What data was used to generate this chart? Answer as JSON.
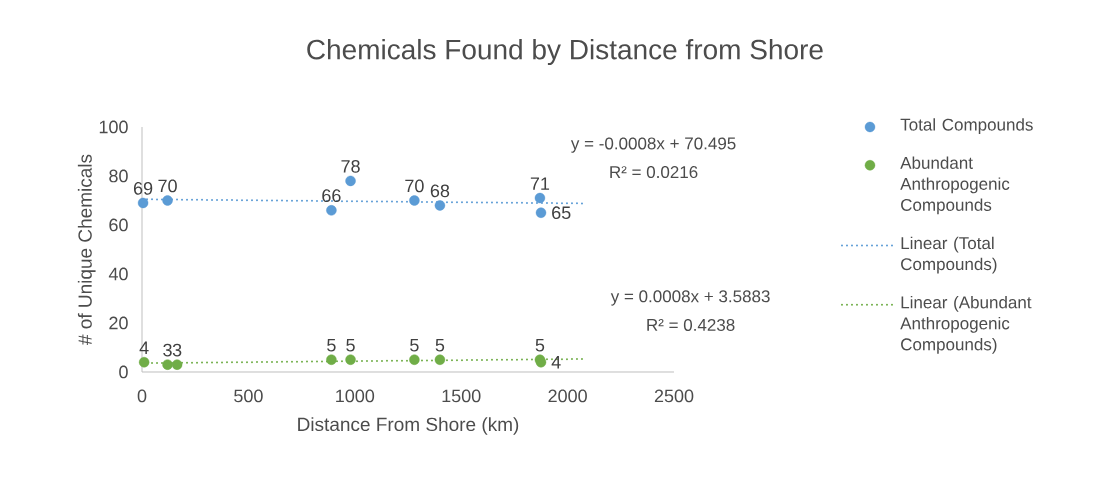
{
  "chart_data": {
    "type": "scatter",
    "title": "Chemicals Found by Distance from Shore",
    "xlabel": "Distance From Shore (km)",
    "ylabel": "# of Unique Chemicals",
    "xlim": [
      0,
      2500
    ],
    "xticks": [
      0,
      500,
      1000,
      1500,
      2000,
      2500
    ],
    "ylim": [
      0,
      100
    ],
    "yticks": [
      0,
      20,
      40,
      60,
      80,
      100
    ],
    "grid": false,
    "legend": "right",
    "marker": "circle",
    "data_labels": true,
    "series": [
      {
        "name": "Total Compounds",
        "color": "#5b9bd5",
        "x": [
          5,
          120,
          890,
          980,
          1280,
          1400,
          1870,
          1875
        ],
        "values": [
          69,
          70,
          66,
          78,
          70,
          68,
          71,
          65
        ]
      },
      {
        "name": "Abundant Anthropogenic Compounds",
        "color": "#70ad47",
        "x": [
          10,
          120,
          165,
          890,
          980,
          1280,
          1400,
          1870,
          1875
        ],
        "values": [
          4,
          3,
          3,
          5,
          5,
          5,
          5,
          5,
          4
        ]
      },
      {
        "name": "Linear (Total Compounds)",
        "type": "line",
        "line_style": "dotted",
        "marker": "none",
        "data_labels": false,
        "color": "#5b9bd5",
        "x": [
          0,
          2080
        ],
        "values": [
          70.5,
          68.8
        ]
      },
      {
        "name": "Linear (Abundant Anthropogenic Compounds)",
        "type": "line",
        "line_style": "dotted",
        "marker": "none",
        "data_labels": false,
        "color": "#70ad47",
        "x": [
          0,
          2080
        ],
        "values": [
          3.6,
          5.3
        ]
      }
    ],
    "annotations": [
      "y = -0.0008x + 70.495",
      "R² = 0.0216",
      "y = 0.0008x + 3.5883",
      "R² = 0.4238"
    ]
  }
}
